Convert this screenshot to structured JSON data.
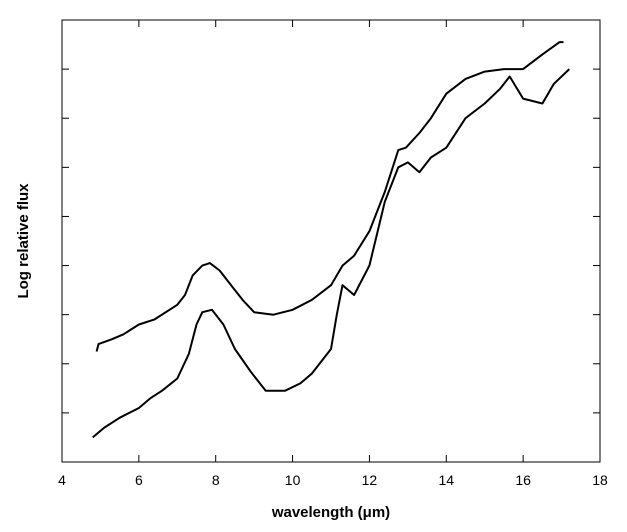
{
  "chart_data": {
    "type": "line",
    "title": "",
    "xlabel": "wavelength (μm)",
    "ylabel": "Log relative flux",
    "xlim": [
      4,
      18
    ],
    "ylim": [
      0,
      9
    ],
    "x_ticks": [
      4,
      6,
      8,
      10,
      12,
      14,
      16,
      18
    ],
    "y_tick_count": 8,
    "y_tick_labels_shown": false,
    "grid": false,
    "legend": "none",
    "line_color": "#000000",
    "series": [
      {
        "points": [
          [
            4.9,
            2.25
          ],
          [
            4.95,
            2.4
          ],
          [
            5.3,
            2.5
          ],
          [
            5.6,
            2.6
          ],
          [
            6.0,
            2.8
          ],
          [
            6.4,
            2.9
          ],
          [
            7.0,
            3.2
          ],
          [
            7.2,
            3.4
          ],
          [
            7.4,
            3.8
          ],
          [
            7.65,
            4.0
          ],
          [
            7.85,
            4.05
          ],
          [
            8.1,
            3.9
          ],
          [
            8.4,
            3.6
          ],
          [
            8.7,
            3.3
          ],
          [
            9.0,
            3.05
          ],
          [
            9.5,
            3.0
          ],
          [
            10.0,
            3.1
          ],
          [
            10.5,
            3.3
          ],
          [
            11.0,
            3.6
          ],
          [
            11.3,
            4.0
          ],
          [
            11.6,
            4.2
          ],
          [
            12.0,
            4.7
          ],
          [
            12.4,
            5.5
          ],
          [
            12.75,
            6.35
          ],
          [
            12.95,
            6.4
          ],
          [
            13.3,
            6.7
          ],
          [
            13.6,
            7.0
          ],
          [
            14.0,
            7.5
          ],
          [
            14.5,
            7.8
          ],
          [
            15.0,
            7.95
          ],
          [
            15.5,
            8.0
          ],
          [
            16.0,
            8.0
          ],
          [
            16.5,
            8.3
          ],
          [
            16.95,
            8.55
          ],
          [
            17.05,
            8.55
          ]
        ]
      },
      {
        "points": [
          [
            4.8,
            0.5
          ],
          [
            5.1,
            0.7
          ],
          [
            5.5,
            0.9
          ],
          [
            6.0,
            1.1
          ],
          [
            6.3,
            1.3
          ],
          [
            6.6,
            1.45
          ],
          [
            7.0,
            1.7
          ],
          [
            7.3,
            2.2
          ],
          [
            7.5,
            2.8
          ],
          [
            7.65,
            3.05
          ],
          [
            7.9,
            3.1
          ],
          [
            8.2,
            2.8
          ],
          [
            8.5,
            2.3
          ],
          [
            8.9,
            1.85
          ],
          [
            9.3,
            1.45
          ],
          [
            9.8,
            1.45
          ],
          [
            10.2,
            1.6
          ],
          [
            10.5,
            1.8
          ],
          [
            11.0,
            2.3
          ],
          [
            11.15,
            3.0
          ],
          [
            11.3,
            3.6
          ],
          [
            11.6,
            3.4
          ],
          [
            12.0,
            4.0
          ],
          [
            12.4,
            5.3
          ],
          [
            12.75,
            6.0
          ],
          [
            13.0,
            6.1
          ],
          [
            13.3,
            5.9
          ],
          [
            13.6,
            6.2
          ],
          [
            14.0,
            6.4
          ],
          [
            14.5,
            7.0
          ],
          [
            15.0,
            7.3
          ],
          [
            15.4,
            7.6
          ],
          [
            15.65,
            7.85
          ],
          [
            16.0,
            7.4
          ],
          [
            16.5,
            7.3
          ],
          [
            16.8,
            7.7
          ],
          [
            17.2,
            8.0
          ]
        ]
      }
    ]
  }
}
